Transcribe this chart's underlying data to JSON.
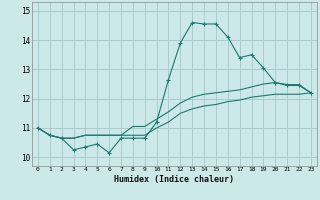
{
  "xlabel": "Humidex (Indice chaleur)",
  "bg_color": "#cce8e8",
  "grid_color": "#aacccc",
  "line_color": "#1a7a6e",
  "xlim": [
    -0.5,
    23.5
  ],
  "ylim": [
    9.7,
    15.3
  ],
  "yticks": [
    10,
    11,
    12,
    13,
    14,
    15
  ],
  "xticks": [
    0,
    1,
    2,
    3,
    4,
    5,
    6,
    7,
    8,
    9,
    10,
    11,
    12,
    13,
    14,
    15,
    16,
    17,
    18,
    19,
    20,
    21,
    22,
    23
  ],
  "line1_x": [
    0,
    1,
    2,
    3,
    4,
    5,
    6,
    7,
    8,
    9,
    10,
    11,
    12,
    13,
    14,
    15,
    16,
    17,
    18,
    19,
    20,
    21,
    22,
    23
  ],
  "line1_y": [
    11.0,
    10.75,
    10.65,
    10.25,
    10.35,
    10.45,
    10.15,
    10.65,
    10.65,
    10.65,
    11.2,
    12.65,
    13.9,
    14.6,
    14.55,
    14.55,
    14.1,
    13.4,
    13.5,
    13.05,
    12.55,
    12.45,
    12.45,
    12.2
  ],
  "line2_x": [
    0,
    1,
    2,
    3,
    4,
    5,
    6,
    7,
    8,
    9,
    10,
    11,
    12,
    13,
    14,
    15,
    16,
    17,
    18,
    19,
    20,
    21,
    22,
    23
  ],
  "line2_y": [
    11.0,
    10.75,
    10.65,
    10.65,
    10.75,
    10.75,
    10.75,
    10.75,
    11.05,
    11.05,
    11.3,
    11.55,
    11.85,
    12.05,
    12.15,
    12.2,
    12.25,
    12.3,
    12.4,
    12.5,
    12.55,
    12.48,
    12.48,
    12.2
  ],
  "line3_x": [
    0,
    1,
    2,
    3,
    4,
    5,
    6,
    7,
    8,
    9,
    10,
    11,
    12,
    13,
    14,
    15,
    16,
    17,
    18,
    19,
    20,
    21,
    22,
    23
  ],
  "line3_y": [
    11.0,
    10.75,
    10.65,
    10.65,
    10.75,
    10.75,
    10.75,
    10.75,
    10.75,
    10.75,
    11.0,
    11.2,
    11.5,
    11.65,
    11.75,
    11.8,
    11.9,
    11.95,
    12.05,
    12.1,
    12.15,
    12.15,
    12.15,
    12.2
  ]
}
